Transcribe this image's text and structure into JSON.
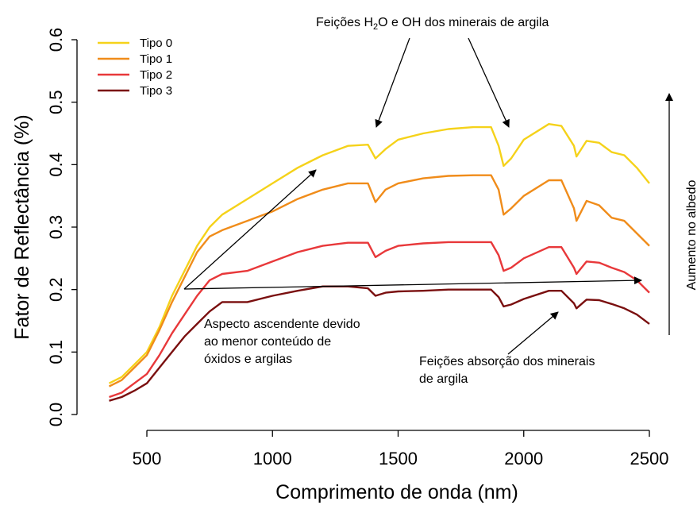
{
  "chart_data": {
    "type": "line",
    "title": "",
    "xlabel": "Comprimento de onda (nm)",
    "ylabel": "Fator de Reflectância (%)",
    "xlim": [
      350,
      2500
    ],
    "ylim": [
      0,
      0.6
    ],
    "xticks": [
      500,
      1000,
      1500,
      2000,
      2500
    ],
    "xtick_labels": [
      "500",
      "1000",
      "1500",
      "2000",
      "2500"
    ],
    "yticks": [
      0.0,
      0.1,
      0.2,
      0.3,
      0.4,
      0.5,
      0.6
    ],
    "ytick_labels": [
      "0.0",
      "0.1",
      "0.2",
      "0.3",
      "0.4",
      "0.5",
      "0.6"
    ],
    "grid": false,
    "legend_position": "top-left",
    "x": [
      350,
      400,
      450,
      500,
      550,
      600,
      650,
      700,
      750,
      800,
      900,
      1000,
      1100,
      1200,
      1300,
      1380,
      1410,
      1450,
      1500,
      1600,
      1700,
      1800,
      1870,
      1900,
      1920,
      1950,
      2000,
      2100,
      2150,
      2200,
      2210,
      2250,
      2300,
      2350,
      2400,
      2450,
      2500
    ],
    "series": [
      {
        "name": "Tipo 0",
        "color": "#F5D21A",
        "values": [
          0.05,
          0.06,
          0.08,
          0.1,
          0.14,
          0.19,
          0.23,
          0.27,
          0.3,
          0.32,
          0.345,
          0.37,
          0.395,
          0.415,
          0.43,
          0.432,
          0.41,
          0.425,
          0.44,
          0.45,
          0.457,
          0.46,
          0.46,
          0.43,
          0.398,
          0.41,
          0.44,
          0.465,
          0.462,
          0.43,
          0.413,
          0.438,
          0.435,
          0.42,
          0.415,
          0.395,
          0.37
        ]
      },
      {
        "name": "Tipo 1",
        "color": "#F08C1A",
        "values": [
          0.045,
          0.055,
          0.075,
          0.095,
          0.135,
          0.18,
          0.22,
          0.26,
          0.285,
          0.295,
          0.31,
          0.325,
          0.345,
          0.36,
          0.37,
          0.37,
          0.34,
          0.36,
          0.37,
          0.378,
          0.382,
          0.383,
          0.383,
          0.36,
          0.32,
          0.33,
          0.35,
          0.375,
          0.375,
          0.33,
          0.31,
          0.342,
          0.335,
          0.315,
          0.31,
          0.29,
          0.27
        ]
      },
      {
        "name": "Tipo 2",
        "color": "#E8383A",
        "values": [
          0.028,
          0.035,
          0.05,
          0.065,
          0.095,
          0.13,
          0.16,
          0.19,
          0.215,
          0.225,
          0.23,
          0.245,
          0.26,
          0.27,
          0.275,
          0.275,
          0.252,
          0.262,
          0.27,
          0.274,
          0.276,
          0.276,
          0.276,
          0.255,
          0.23,
          0.235,
          0.25,
          0.268,
          0.268,
          0.235,
          0.225,
          0.245,
          0.243,
          0.235,
          0.228,
          0.215,
          0.195
        ]
      },
      {
        "name": "Tipo 3",
        "color": "#7A0F0F",
        "values": [
          0.022,
          0.028,
          0.038,
          0.05,
          0.075,
          0.1,
          0.125,
          0.145,
          0.165,
          0.18,
          0.18,
          0.19,
          0.198,
          0.205,
          0.205,
          0.202,
          0.19,
          0.195,
          0.197,
          0.198,
          0.2,
          0.2,
          0.2,
          0.188,
          0.173,
          0.176,
          0.185,
          0.198,
          0.198,
          0.178,
          0.17,
          0.184,
          0.183,
          0.177,
          0.17,
          0.16,
          0.145
        ]
      }
    ],
    "annotations": {
      "top_prefix": "Feições H",
      "top_sub": "2",
      "top_suffix": "O e OH dos minerais de argila",
      "ascendente_line1": "Aspecto ascendente devido",
      "ascendente_line2": "ao menor conteúdo de",
      "ascendente_line3": "óxidos e argilas",
      "absorcao_line1": "Feições absorção dos minerais",
      "absorcao_line2": "de argila",
      "albedo": "Aumento no albedo"
    }
  }
}
